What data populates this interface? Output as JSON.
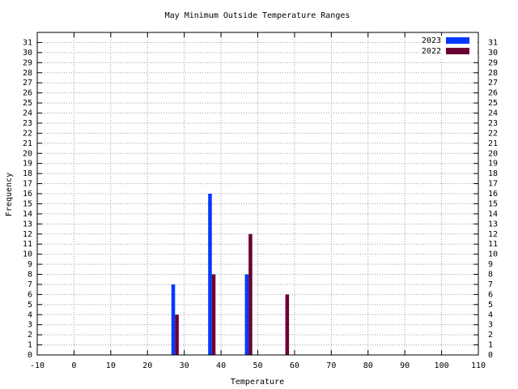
{
  "chart_data": {
    "type": "bar",
    "title": "May Minimum Outside Temperature Ranges",
    "x_label": "Temperature",
    "y_label": "Frequency",
    "xlim": [
      -10,
      110
    ],
    "xticks": [
      -10,
      0,
      10,
      20,
      30,
      40,
      50,
      60,
      70,
      80,
      90,
      100,
      110
    ],
    "ylim": [
      0,
      32
    ],
    "yticks": [
      0,
      1,
      2,
      3,
      4,
      5,
      6,
      7,
      8,
      9,
      10,
      11,
      12,
      13,
      14,
      15,
      16,
      17,
      18,
      19,
      20,
      21,
      22,
      23,
      24,
      25,
      26,
      27,
      28,
      29,
      30,
      31
    ],
    "grid": true,
    "legend": "top-right",
    "series": [
      {
        "name": "2023",
        "color": "#0038ff",
        "x": [
          27,
          37,
          47
        ],
        "values": [
          7,
          16,
          8
        ]
      },
      {
        "name": "2022",
        "color": "#6b0034",
        "x": [
          28,
          38,
          48,
          58
        ],
        "values": [
          4,
          8,
          12,
          6
        ]
      }
    ]
  }
}
